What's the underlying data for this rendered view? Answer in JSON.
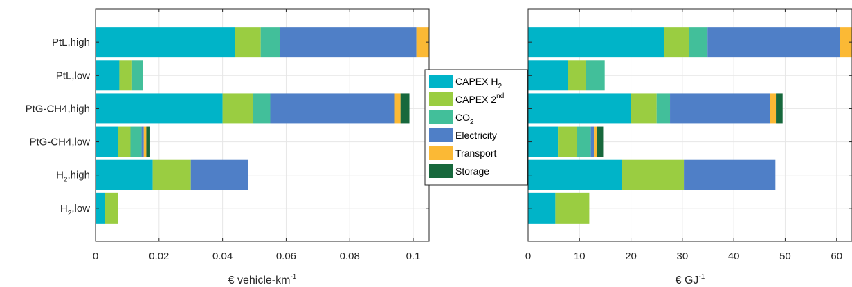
{
  "chart_data": {
    "type": "bar",
    "orientation": "horizontal",
    "stacked": true,
    "categories": [
      {
        "base": "PtL",
        "sub": "",
        "suffix": ",high"
      },
      {
        "base": "PtL",
        "sub": "",
        "suffix": ",low"
      },
      {
        "base": "PtG-CH4",
        "sub": "",
        "suffix": ",high"
      },
      {
        "base": "PtG-CH4",
        "sub": "",
        "suffix": ",low"
      },
      {
        "base": "H",
        "sub": "2",
        "suffix": ",high"
      },
      {
        "base": "H",
        "sub": "2",
        "suffix": ",low"
      }
    ],
    "legend": {
      "placement": "center-between",
      "entries": [
        {
          "text": "CAPEX H",
          "sub": "2",
          "sup": "",
          "color": "#00b4c8"
        },
        {
          "text": "CAPEX 2",
          "sub": "",
          "sup": "nd",
          "color": "#9acd41"
        },
        {
          "text": "CO",
          "sub": "2",
          "sup": "",
          "color": "#42bf9a"
        },
        {
          "text": "Electricity",
          "sub": "",
          "sup": "",
          "color": "#4f7fc7"
        },
        {
          "text": "Transport",
          "sub": "",
          "sup": "",
          "color": "#fbb935"
        },
        {
          "text": "Storage",
          "sub": "",
          "sup": "",
          "color": "#17683c"
        }
      ]
    },
    "panels": [
      {
        "xlabel": {
          "text": "€ vehicle-km",
          "sup": "-1"
        },
        "xlim": [
          0,
          0.105
        ],
        "xticks": [
          0,
          0.02,
          0.04,
          0.06,
          0.08,
          0.1
        ],
        "xtick_labels": [
          "0",
          "0.02",
          "0.04",
          "0.06",
          "0.08",
          "0.1"
        ],
        "grid": true,
        "series": [
          {
            "name": "CAPEX H2",
            "values": [
              0.044,
              0.0075,
              0.04,
              0.007,
              0.018,
              0.003
            ]
          },
          {
            "name": "CAPEX 2nd",
            "values": [
              0.008,
              0.0038,
              0.0095,
              0.004,
              0.012,
              0.004
            ]
          },
          {
            "name": "CO2",
            "values": [
              0.006,
              0.0037,
              0.0055,
              0.0035,
              0,
              0
            ]
          },
          {
            "name": "Electricity",
            "values": [
              0.043,
              0,
              0.039,
              0.0007,
              0.018,
              0
            ]
          },
          {
            "name": "Transport",
            "values": [
              0.004,
              0,
              0.002,
              0.0008,
              0,
              0
            ]
          },
          {
            "name": "Storage",
            "values": [
              0,
              0,
              0.0028,
              0.0012,
              0,
              0
            ]
          }
        ]
      },
      {
        "xlabel": {
          "text": "€ GJ",
          "sup": "-1"
        },
        "xlim": [
          0,
          63
        ],
        "xticks": [
          0,
          10,
          20,
          30,
          40,
          50,
          60
        ],
        "xtick_labels": [
          "0",
          "10",
          "20",
          "30",
          "40",
          "50",
          "60"
        ],
        "grid": true,
        "series": [
          {
            "name": "CAPEX H2",
            "values": [
              26.5,
              7.8,
              20.0,
              5.8,
              18.2,
              5.3
            ]
          },
          {
            "name": "CAPEX 2nd",
            "values": [
              4.8,
              3.5,
              5.0,
              3.7,
              12.1,
              6.6
            ]
          },
          {
            "name": "CO2",
            "values": [
              3.6,
              3.6,
              2.6,
              2.7,
              0,
              0
            ]
          },
          {
            "name": "Electricity",
            "values": [
              25.7,
              0,
              19.5,
              0.6,
              17.8,
              0
            ]
          },
          {
            "name": "Transport",
            "values": [
              2.4,
              0,
              1.1,
              0.6,
              0,
              0
            ]
          },
          {
            "name": "Storage",
            "values": [
              0,
              0,
              1.3,
              1.2,
              0,
              0
            ]
          }
        ]
      }
    ]
  }
}
